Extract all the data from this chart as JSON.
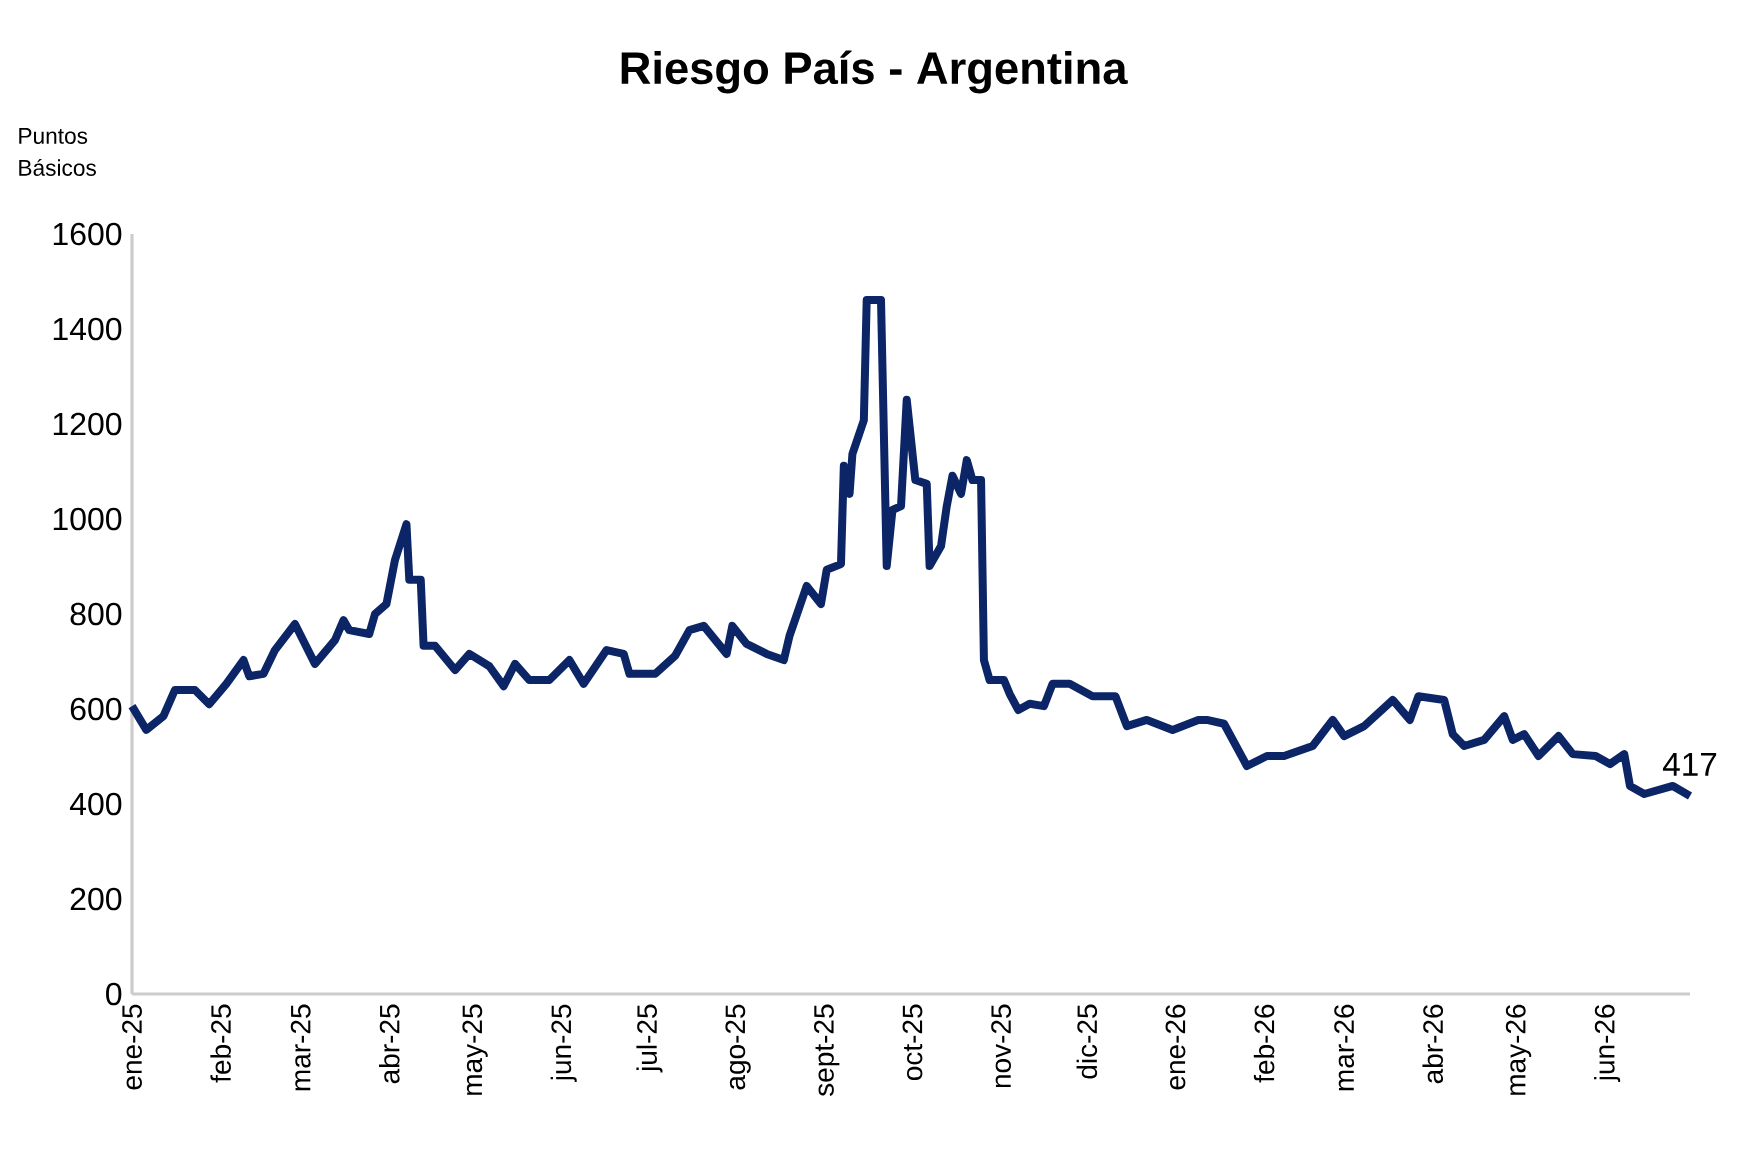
{
  "chart_data": {
    "type": "line",
    "title": "Riesgo País - Argentina",
    "ylabel": "Puntos Básicos",
    "x": [
      "2025-01-01",
      "2025-01-06",
      "2025-01-12",
      "2025-01-16",
      "2025-01-23",
      "2025-01-28",
      "2025-02-03",
      "2025-02-09",
      "2025-02-11",
      "2025-02-16",
      "2025-02-20",
      "2025-02-27",
      "2025-03-06",
      "2025-03-13",
      "2025-03-16",
      "2025-03-18",
      "2025-03-25",
      "2025-03-27",
      "2025-03-31",
      "2025-04-03",
      "2025-04-07",
      "2025-04-08",
      "2025-04-12",
      "2025-04-13",
      "2025-04-17",
      "2025-04-24",
      "2025-04-29",
      "2025-05-06",
      "2025-05-11",
      "2025-05-15",
      "2025-05-20",
      "2025-05-27",
      "2025-06-03",
      "2025-06-08",
      "2025-06-16",
      "2025-06-22",
      "2025-06-24",
      "2025-07-03",
      "2025-07-10",
      "2025-07-15",
      "2025-07-20",
      "2025-07-28",
      "2025-07-30",
      "2025-08-04",
      "2025-08-11",
      "2025-08-17",
      "2025-08-19",
      "2025-08-25",
      "2025-08-30",
      "2025-09-01",
      "2025-09-06",
      "2025-09-07",
      "2025-09-09",
      "2025-09-10",
      "2025-09-14",
      "2025-09-15",
      "2025-09-20",
      "2025-09-22",
      "2025-09-24",
      "2025-09-27",
      "2025-09-29",
      "2025-10-02",
      "2025-10-06",
      "2025-10-07",
      "2025-10-11",
      "2025-10-13",
      "2025-10-15",
      "2025-10-18",
      "2025-10-20",
      "2025-10-22",
      "2025-10-25",
      "2025-10-26",
      "2025-10-28",
      "2025-11-02",
      "2025-11-04",
      "2025-11-07",
      "2025-11-11",
      "2025-11-16",
      "2025-11-19",
      "2025-11-25",
      "2025-12-03",
      "2025-12-11",
      "2025-12-15",
      "2025-12-22",
      "2025-12-31",
      "2026-01-09",
      "2026-01-12",
      "2026-01-18",
      "2026-01-26",
      "2026-02-02",
      "2026-02-08",
      "2026-02-18",
      "2026-02-25",
      "2026-03-01",
      "2026-03-08",
      "2026-03-18",
      "2026-03-24",
      "2026-03-27",
      "2026-04-05",
      "2026-04-08",
      "2026-04-12",
      "2026-04-19",
      "2026-04-26",
      "2026-04-29",
      "2026-05-03",
      "2026-05-08",
      "2026-05-15",
      "2026-05-20",
      "2026-05-28",
      "2026-06-02",
      "2026-06-07",
      "2026-06-09",
      "2026-06-14",
      "2026-06-24",
      "2026-06-30"
    ],
    "series": [
      {
        "color": "#0b2566",
        "values": [
          606,
          556,
          585,
          640,
          640,
          610,
          653,
          703,
          669,
          674,
          724,
          779,
          695,
          745,
          787,
          766,
          758,
          800,
          821,
          914,
          989,
          872,
          872,
          733,
          733,
          682,
          716,
          690,
          648,
          695,
          661,
          661,
          703,
          653,
          724,
          716,
          674,
          674,
          712,
          766,
          775,
          716,
          775,
          737,
          716,
          703,
          754,
          859,
          821,
          893,
          905,
          1112,
          1053,
          1137,
          1208,
          1461,
          1461,
          901,
          1019,
          1027,
          1251,
          1082,
          1074,
          901,
          943,
          1027,
          1091,
          1053,
          1124,
          1082,
          1082,
          703,
          661,
          661,
          632,
          598,
          611,
          606,
          653,
          653,
          627,
          627,
          564,
          577,
          556,
          577,
          577,
          569,
          480,
          501,
          501,
          522,
          577,
          543,
          564,
          619,
          577,
          627,
          619,
          547,
          522,
          535,
          585,
          535,
          547,
          501,
          543,
          505,
          501,
          484,
          505,
          438,
          421,
          438,
          417
        ]
      }
    ],
    "xlim": [
      "2025-01-01",
      "2026-06-30"
    ],
    "xticks": [
      {
        "value": "2025-01-01",
        "label": "ene-25"
      },
      {
        "value": "2025-02-01",
        "label": "feb-25"
      },
      {
        "value": "2025-03-01",
        "label": "mar-25"
      },
      {
        "value": "2025-04-01",
        "label": "abr-25"
      },
      {
        "value": "2025-05-01",
        "label": "may-25"
      },
      {
        "value": "2025-06-01",
        "label": "jun-25"
      },
      {
        "value": "2025-07-01",
        "label": "jul-25"
      },
      {
        "value": "2025-08-01",
        "label": "ago-25"
      },
      {
        "value": "2025-09-01",
        "label": "sept-25"
      },
      {
        "value": "2025-10-01",
        "label": "oct-25"
      },
      {
        "value": "2025-11-01",
        "label": "nov-25"
      },
      {
        "value": "2025-12-01",
        "label": "dic-25"
      },
      {
        "value": "2026-01-01",
        "label": "ene-26"
      },
      {
        "value": "2026-02-01",
        "label": "feb-26"
      },
      {
        "value": "2026-03-01",
        "label": "mar-26"
      },
      {
        "value": "2026-04-01",
        "label": "abr-26"
      },
      {
        "value": "2026-05-01",
        "label": "may-26"
      },
      {
        "value": "2026-06-01",
        "label": "jun-26"
      }
    ],
    "ylim": [
      0,
      1600
    ],
    "yticks": [
      0,
      200,
      400,
      600,
      800,
      1000,
      1200,
      1400,
      1600
    ],
    "annotations": [
      {
        "text": "417",
        "x": "2026-06-30",
        "y": 417
      }
    ],
    "marker": "none",
    "line_style": "solid"
  }
}
